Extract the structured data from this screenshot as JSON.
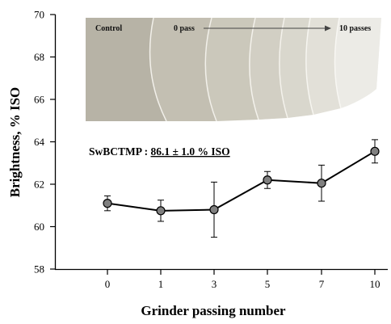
{
  "chart_data": {
    "type": "line",
    "title": "",
    "xlabel": "Grinder passing number",
    "ylabel": "Brightness, % ISO",
    "ylim": [
      58,
      70
    ],
    "yticks": [
      58,
      60,
      62,
      64,
      66,
      68,
      70
    ],
    "categories": [
      "0",
      "1",
      "3",
      "5",
      "7",
      "10"
    ],
    "series": [
      {
        "values": [
          61.1,
          60.75,
          60.8,
          62.2,
          62.05,
          63.55
        ],
        "error": [
          0.35,
          0.5,
          1.3,
          0.4,
          0.85,
          0.55
        ],
        "color": "#808080"
      }
    ],
    "grid": false,
    "legend": "none",
    "annotation": {
      "label": "SwBCTMP : ",
      "value": "86.1 ± 1.0 % ISO"
    },
    "inset_photo": {
      "label_control": "Control",
      "label_start": "0 pass",
      "label_end": "10 passes"
    }
  }
}
